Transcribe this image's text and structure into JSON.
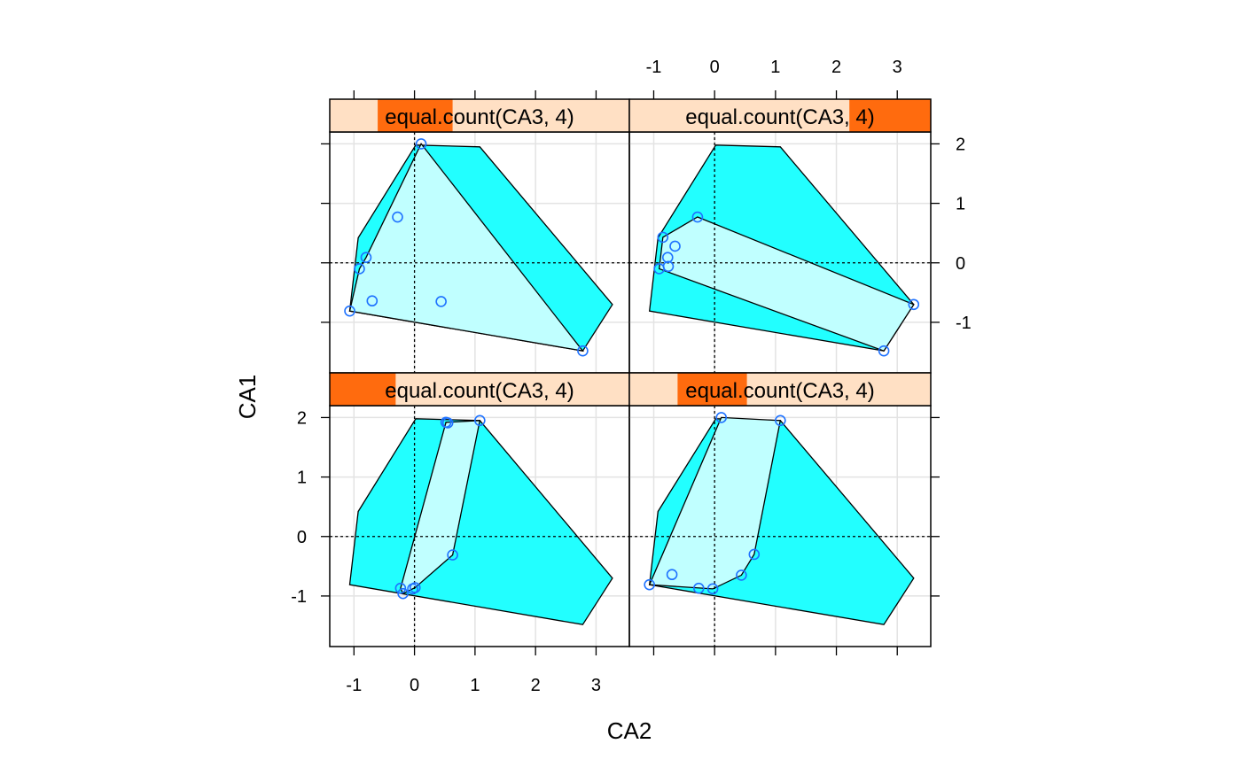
{
  "figure": {
    "xlabel": "CA2",
    "ylabel": "CA1"
  },
  "colors": {
    "hull_all": "#22ffff",
    "hull_subset": "#c0ffff",
    "strip_bg": "#ffe0c4",
    "strip_active": "#ff6b0e",
    "point_stroke": "#1e72ff",
    "grid": "#e3e3e3"
  },
  "chart_data": {
    "type": "scatter",
    "title": "",
    "xlabel": "CA2",
    "ylabel": "CA1",
    "xlim": [
      -1.4,
      3.55
    ],
    "ylim": [
      -1.85,
      2.2
    ],
    "x_ticks": [
      "-1",
      "0",
      "1",
      "2",
      "3"
    ],
    "y_ticks": [
      "-1",
      "0",
      "1",
      "2"
    ],
    "x_tick_values": [
      -1,
      0,
      1,
      2,
      3
    ],
    "y_tick_values": [
      -1,
      0,
      1,
      2
    ],
    "grid": true,
    "reference_lines": {
      "x": 0,
      "y": 0
    },
    "layout": "2x2 trellis",
    "all_hull": [
      [
        -1.07,
        -0.81
      ],
      [
        -0.93,
        0.42
      ],
      [
        0.02,
        1.98
      ],
      [
        1.08,
        1.95
      ],
      [
        3.27,
        -0.7
      ],
      [
        2.78,
        -1.48
      ]
    ],
    "panels": [
      {
        "strip": "equal.count(CA3, 4)",
        "shingle_range": [
          0.16,
          0.41
        ],
        "points": [
          [
            0.11,
            2.0
          ],
          [
            -0.28,
            0.77
          ],
          [
            -0.8,
            0.09
          ],
          [
            -0.91,
            -0.1
          ],
          [
            -0.7,
            -0.64
          ],
          [
            -1.07,
            -0.81
          ],
          [
            0.44,
            -0.65
          ],
          [
            2.78,
            -1.48
          ]
        ],
        "hull": [
          [
            -1.07,
            -0.81
          ],
          [
            -0.91,
            -0.1
          ],
          [
            -0.8,
            0.09
          ],
          [
            0.11,
            2.0
          ],
          [
            2.78,
            -1.48
          ]
        ]
      },
      {
        "strip": "equal.count(CA3, 4)",
        "shingle_range": [
          0.73,
          1.0
        ],
        "points": [
          [
            -0.28,
            0.77
          ],
          [
            -0.85,
            0.43
          ],
          [
            -0.65,
            0.28
          ],
          [
            -0.77,
            0.09
          ],
          [
            -0.76,
            -0.06
          ],
          [
            -0.91,
            -0.1
          ],
          [
            3.27,
            -0.7
          ],
          [
            2.78,
            -1.48
          ]
        ],
        "hull": [
          [
            -0.91,
            -0.1
          ],
          [
            -0.85,
            0.43
          ],
          [
            -0.28,
            0.77
          ],
          [
            3.27,
            -0.7
          ],
          [
            2.78,
            -1.48
          ]
        ]
      },
      {
        "strip": "equal.count(CA3, 4)",
        "shingle_range": [
          0.0,
          0.22
        ],
        "points": [
          [
            0.52,
            1.92
          ],
          [
            0.55,
            1.91
          ],
          [
            1.08,
            1.95
          ],
          [
            0.63,
            -0.31
          ],
          [
            -0.03,
            -0.88
          ],
          [
            0.01,
            -0.86
          ],
          [
            -0.23,
            -0.87
          ],
          [
            -0.19,
            -0.96
          ]
        ],
        "hull": [
          [
            -0.23,
            -0.87
          ],
          [
            0.52,
            1.92
          ],
          [
            1.08,
            1.95
          ],
          [
            0.63,
            -0.31
          ],
          [
            0.01,
            -0.86
          ],
          [
            -0.19,
            -0.96
          ]
        ]
      },
      {
        "strip": "equal.count(CA3, 4)",
        "shingle_range": [
          0.16,
          0.39
        ],
        "points": [
          [
            0.11,
            2.0
          ],
          [
            1.08,
            1.95
          ],
          [
            0.65,
            -0.3
          ],
          [
            0.44,
            -0.65
          ],
          [
            -0.7,
            -0.64
          ],
          [
            -0.26,
            -0.87
          ],
          [
            -0.03,
            -0.88
          ],
          [
            -1.07,
            -0.81
          ]
        ],
        "hull": [
          [
            -1.07,
            -0.81
          ],
          [
            0.11,
            2.0
          ],
          [
            1.08,
            1.95
          ],
          [
            0.65,
            -0.3
          ],
          [
            0.44,
            -0.65
          ],
          [
            -0.03,
            -0.88
          ]
        ]
      }
    ]
  }
}
